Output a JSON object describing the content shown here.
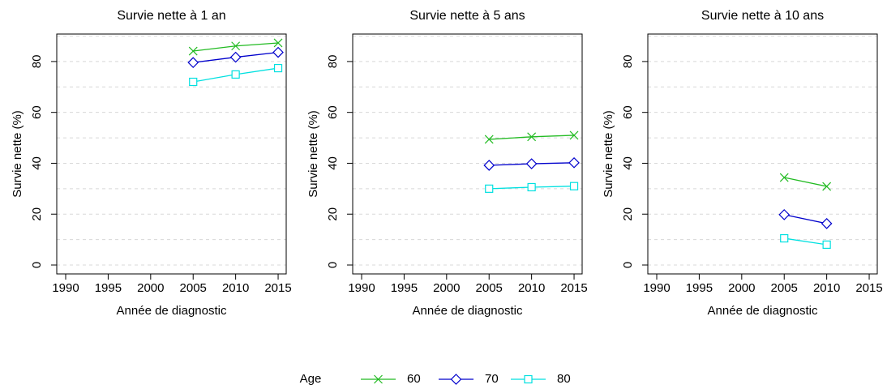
{
  "chart_data": [
    {
      "type": "line",
      "title": "Survie nette à 1 an",
      "x_label": "Année de diagnostic",
      "y_label": "Survie nette (%)",
      "x": [
        2005,
        2010,
        2015
      ],
      "xlim": [
        1988.95,
        2015.95
      ],
      "xticks": [
        1990,
        1995,
        2000,
        2005,
        2010,
        2015
      ],
      "ylim": [
        -3.5,
        90.8
      ],
      "yticks": [
        0,
        20,
        40,
        60,
        80
      ],
      "ygrid": [
        0,
        10,
        20,
        30,
        40,
        50,
        60,
        70,
        80,
        90
      ],
      "legend_title": "Age",
      "series": [
        {
          "name": "60",
          "color": "#22bb22",
          "marker": "x",
          "values": [
            84.1,
            86.1,
            87.3
          ]
        },
        {
          "name": "70",
          "color": "#0000cc",
          "marker": "diamond",
          "values": [
            79.6,
            81.7,
            83.6
          ]
        },
        {
          "name": "80",
          "color": "#00e0e0",
          "marker": "square",
          "values": [
            72.0,
            74.9,
            77.4
          ]
        }
      ]
    },
    {
      "type": "line",
      "title": "Survie nette à 5 ans",
      "x_label": "Année de diagnostic",
      "y_label": "Survie nette (%)",
      "x": [
        2005,
        2010,
        2015
      ],
      "xlim": [
        1988.95,
        2015.95
      ],
      "xticks": [
        1990,
        1995,
        2000,
        2005,
        2010,
        2015
      ],
      "ylim": [
        -3.5,
        90.8
      ],
      "yticks": [
        0,
        20,
        40,
        60,
        80
      ],
      "ygrid": [
        0,
        10,
        20,
        30,
        40,
        50,
        60,
        70,
        80,
        90
      ],
      "series": [
        {
          "name": "60",
          "color": "#22bb22",
          "marker": "x",
          "values": [
            49.4,
            50.4,
            51.0
          ]
        },
        {
          "name": "70",
          "color": "#0000cc",
          "marker": "diamond",
          "values": [
            39.2,
            39.8,
            40.2
          ]
        },
        {
          "name": "80",
          "color": "#00e0e0",
          "marker": "square",
          "values": [
            30.0,
            30.6,
            31.0
          ]
        }
      ]
    },
    {
      "type": "line",
      "title": "Survie nette à 10 ans",
      "x_label": "Année de diagnostic",
      "y_label": "Survie nette (%)",
      "x": [
        2005,
        2010
      ],
      "xlim": [
        1988.95,
        2015.95
      ],
      "xticks": [
        1990,
        1995,
        2000,
        2005,
        2010,
        2015
      ],
      "ylim": [
        -3.5,
        90.8
      ],
      "yticks": [
        0,
        20,
        40,
        60,
        80
      ],
      "ygrid": [
        0,
        10,
        20,
        30,
        40,
        50,
        60,
        70,
        80,
        90
      ],
      "series": [
        {
          "name": "60",
          "color": "#22bb22",
          "marker": "x",
          "values": [
            34.4,
            30.9
          ]
        },
        {
          "name": "70",
          "color": "#0000cc",
          "marker": "diamond",
          "values": [
            19.8,
            16.3
          ]
        },
        {
          "name": "80",
          "color": "#00e0e0",
          "marker": "square",
          "values": [
            10.5,
            8.0
          ]
        }
      ]
    }
  ]
}
